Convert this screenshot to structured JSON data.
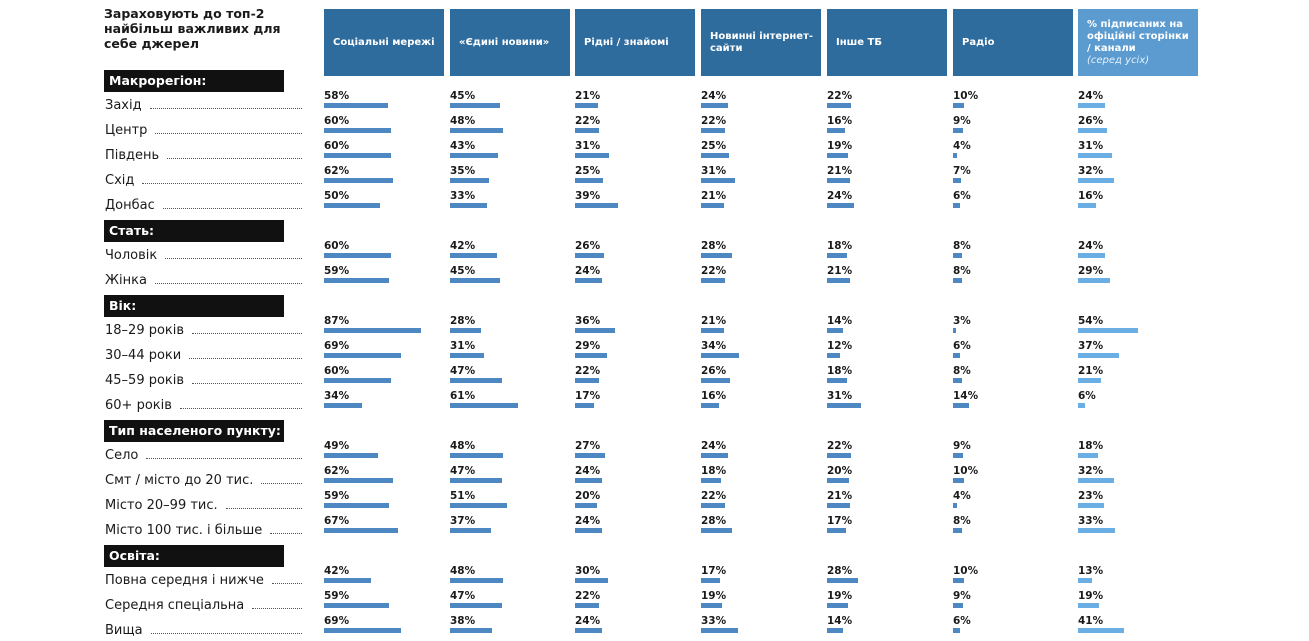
{
  "header": {
    "title": "Зараховують до топ-2 найбільш важливих для себе джерел"
  },
  "colors": {
    "header_dark": "#2f6c9e",
    "header_light": "#5b9bd0",
    "bar_dark": "#4e88c2",
    "bar_light": "#6aaee3",
    "section_bg": "#111111"
  },
  "chart_data": {
    "type": "table",
    "unit": "%",
    "columns": [
      {
        "name": "Соціальні мережі"
      },
      {
        "name": "«Єдині новини»"
      },
      {
        "name": "Рідні / знайомі"
      },
      {
        "name": "Новинні інтернет-сайти"
      },
      {
        "name": "Інше ТБ"
      },
      {
        "name": "Радіо"
      },
      {
        "name": "% підписаних на офіційні сторінки / канали",
        "note": "(серед усіх)"
      }
    ],
    "groups": [
      {
        "name": "Макрорегіон:",
        "rows": [
          {
            "label": "Захід",
            "values": [
              58,
              45,
              21,
              24,
              22,
              10,
              24
            ]
          },
          {
            "label": "Центр",
            "values": [
              60,
              48,
              22,
              22,
              16,
              9,
              26
            ]
          },
          {
            "label": "Південь",
            "values": [
              60,
              43,
              31,
              25,
              19,
              4,
              31
            ]
          },
          {
            "label": "Схід",
            "values": [
              62,
              35,
              25,
              31,
              21,
              7,
              32
            ]
          },
          {
            "label": "Донбас",
            "values": [
              50,
              33,
              39,
              21,
              24,
              6,
              16
            ]
          }
        ]
      },
      {
        "name": "Стать:",
        "rows": [
          {
            "label": "Чоловік",
            "values": [
              60,
              42,
              26,
              28,
              18,
              8,
              24
            ]
          },
          {
            "label": "Жінка",
            "values": [
              59,
              45,
              24,
              22,
              21,
              8,
              29
            ]
          }
        ]
      },
      {
        "name": "Вік:",
        "rows": [
          {
            "label": "18–29 років",
            "values": [
              87,
              28,
              36,
              21,
              14,
              3,
              54
            ]
          },
          {
            "label": "30–44 роки",
            "values": [
              69,
              31,
              29,
              34,
              12,
              6,
              37
            ]
          },
          {
            "label": "45–59 років",
            "values": [
              60,
              47,
              22,
              26,
              18,
              8,
              21
            ]
          },
          {
            "label": "60+ років",
            "values": [
              34,
              61,
              17,
              16,
              31,
              14,
              6
            ]
          }
        ]
      },
      {
        "name": "Тип населеного пункту:",
        "rows": [
          {
            "label": "Село",
            "values": [
              49,
              48,
              27,
              24,
              22,
              9,
              18
            ]
          },
          {
            "label": "Смт / місто до 20 тис.",
            "values": [
              62,
              47,
              24,
              18,
              20,
              10,
              32
            ]
          },
          {
            "label": "Місто 20–99 тис.",
            "values": [
              59,
              51,
              20,
              22,
              21,
              4,
              23
            ]
          },
          {
            "label": "Місто 100 тис. і більше",
            "values": [
              67,
              37,
              24,
              28,
              17,
              8,
              33
            ]
          }
        ]
      },
      {
        "name": "Освіта:",
        "rows": [
          {
            "label": "Повна середня і нижче",
            "values": [
              42,
              48,
              30,
              17,
              28,
              10,
              13
            ]
          },
          {
            "label": "Середня спеціальна",
            "values": [
              59,
              47,
              22,
              19,
              19,
              9,
              19
            ]
          },
          {
            "label": "Вища",
            "values": [
              69,
              38,
              24,
              33,
              14,
              6,
              41
            ]
          }
        ]
      }
    ]
  }
}
